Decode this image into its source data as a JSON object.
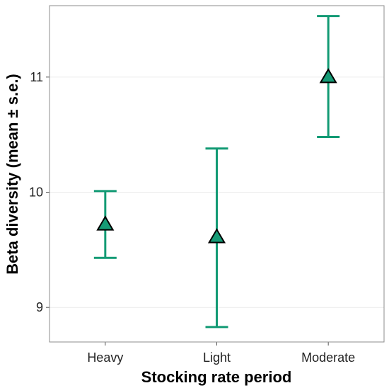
{
  "chart_data": {
    "type": "scatter",
    "title": "",
    "xlabel": "Stocking rate period",
    "ylabel": "Beta diversity (mean ± s.e.)",
    "categories": [
      "Heavy",
      "Light",
      "Moderate"
    ],
    "series": [
      {
        "values": [
          9.72,
          9.61,
          11.0
        ],
        "error_low": [
          9.43,
          8.83,
          10.48
        ],
        "error_high": [
          10.01,
          10.38,
          11.53
        ]
      }
    ],
    "ylim": [
      8.7,
      11.62
    ],
    "yticks": [
      9,
      10,
      11
    ],
    "grid": true,
    "legend": "none",
    "marker": "triangle",
    "colors": {
      "errorbar": "#129a74",
      "marker_fill": "#169b76",
      "marker_stroke": "#000000",
      "grid": "#ececec",
      "frame": "#8c8c8c"
    }
  }
}
